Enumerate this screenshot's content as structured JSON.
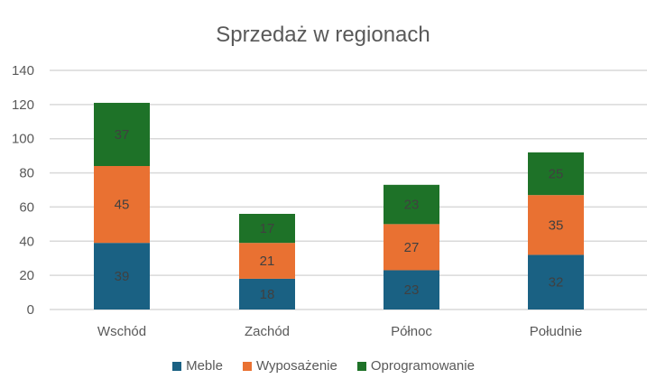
{
  "chart_data": {
    "type": "bar",
    "stacked": true,
    "title": "Sprzedaż w regionach",
    "categories": [
      "Wschód",
      "Zachód",
      "Północ",
      "Południe"
    ],
    "series": [
      {
        "name": "Meble",
        "color": "#1a6183",
        "values": [
          39,
          18,
          23,
          32
        ]
      },
      {
        "name": "Wyposażenie",
        "color": "#e97132",
        "values": [
          45,
          21,
          27,
          35
        ]
      },
      {
        "name": "Oprogramowanie",
        "color": "#1e7228",
        "values": [
          37,
          17,
          23,
          25
        ]
      }
    ],
    "ylim": [
      0,
      140
    ],
    "yticks": [
      0,
      20,
      40,
      60,
      80,
      100,
      120,
      140
    ],
    "grid": true,
    "legend_position": "bottom",
    "data_labels": true
  }
}
